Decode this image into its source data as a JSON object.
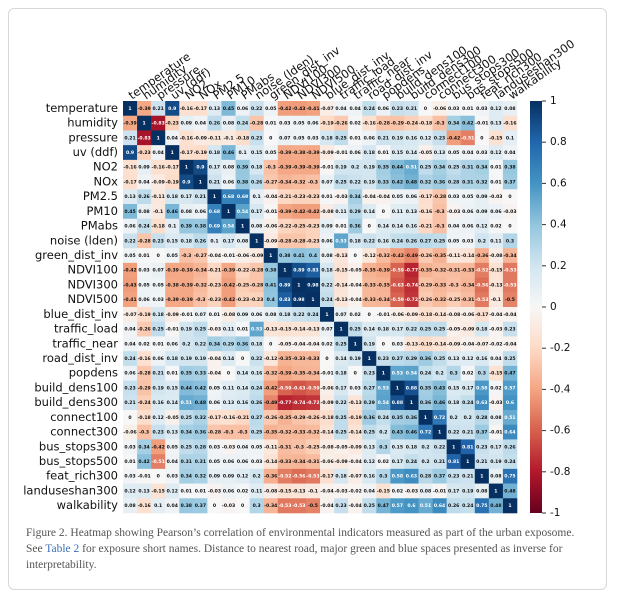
{
  "chart_data": {
    "type": "heatmap",
    "categories": [
      "temperature",
      "humidity",
      "pressure",
      "uv (ddf)",
      "NO2",
      "NOx",
      "PM2.5",
      "PM10",
      "PMabs",
      "noise (lden)",
      "green_dist_inv",
      "NDVI100",
      "NDVI300",
      "NDVI500",
      "blue_dist_inv",
      "traffic_load",
      "traffic_near",
      "road_dist_inv",
      "popdens",
      "build_dens100",
      "build_dens300",
      "connect100",
      "connect300",
      "bus_stops300",
      "bus_stops500",
      "feat_rich300",
      "landuseshan300",
      "walkability"
    ],
    "row_labels": [
      "temperature",
      "humidity",
      "pressure",
      "uv (ddf)",
      "NO2",
      "NOx",
      "PM2.5",
      "PM10",
      "PMabs",
      "noise (lden)",
      "green_dist_inv",
      "NDVI100",
      "NDVI300",
      "NDVI500",
      "blue_dist_inv",
      "traffic_load",
      "traffic_near",
      "road_dist_inv",
      "popdens",
      "build_dens100",
      "build_dens300",
      "connect100",
      "connect300",
      "bus_stops300",
      "bus_stops500",
      "feat_rich300",
      "landuseshan300",
      "walkability"
    ],
    "values": [
      [
        1,
        -0.39,
        0.21,
        0.9,
        -0.16,
        -0.17,
        0.13,
        0.45,
        0.06,
        0.22,
        0.05,
        -0.42,
        -0.43,
        -0.41,
        -0.07,
        0.04,
        0.04,
        0.24,
        0.06,
        0.23,
        0.21,
        0,
        -0.06,
        0.03,
        0.01,
        0.03,
        0.12,
        0.08
      ],
      [
        -0.39,
        1,
        -0.83,
        -0.23,
        0.09,
        0.04,
        0.26,
        0.08,
        0.24,
        -0.28,
        0.01,
        0.03,
        0.05,
        0.06,
        -0.19,
        -0.26,
        0.02,
        -0.16,
        -0.28,
        -0.29,
        -0.24,
        -0.18,
        -0.3,
        0.34,
        0.42,
        -0.01,
        0.13,
        -0.16
      ],
      [
        0.21,
        -0.83,
        1,
        0.04,
        -0.16,
        -0.09,
        -0.11,
        -0.1,
        -0.18,
        0.23,
        0,
        0.07,
        0.05,
        0.03,
        0.18,
        0.25,
        0.01,
        0.06,
        0.21,
        0.19,
        0.16,
        0.12,
        0.23,
        -0.42,
        -0.51,
        0,
        -0.15,
        0.1
      ],
      [
        0.9,
        -0.23,
        0.04,
        1,
        -0.17,
        -0.19,
        0.18,
        0.46,
        0.1,
        0.15,
        0.05,
        -0.39,
        -0.38,
        -0.39,
        -0.09,
        -0.01,
        0.06,
        0.18,
        0.01,
        0.15,
        0.14,
        -0.05,
        0.13,
        0.05,
        0.04,
        0.03,
        0.12,
        0.04
      ],
      [
        -0.16,
        0.09,
        -0.16,
        -0.17,
        1,
        0.9,
        0.17,
        0.08,
        0.39,
        0.18,
        -0.3,
        -0.39,
        -0.39,
        -0.39,
        -0.01,
        0.19,
        0.2,
        0.19,
        0.35,
        0.44,
        0.51,
        0.25,
        0.34,
        0.25,
        0.31,
        0.34,
        0.01,
        0.38
      ],
      [
        -0.17,
        0.04,
        -0.09,
        -0.19,
        0.9,
        1,
        0.21,
        0.06,
        0.38,
        0.26,
        -0.27,
        -0.34,
        -0.32,
        -0.3,
        0.07,
        0.25,
        0.22,
        0.19,
        0.33,
        0.42,
        0.48,
        0.32,
        0.36,
        0.28,
        0.31,
        0.32,
        0.01,
        0.37
      ],
      [
        0.13,
        0.26,
        -0.11,
        0.18,
        0.17,
        0.21,
        1,
        0.68,
        0.69,
        0.1,
        -0.04,
        -0.21,
        -0.23,
        -0.23,
        0.01,
        -0.03,
        0.34,
        -0.04,
        -0.04,
        0.05,
        0.06,
        -0.17,
        -0.28,
        0.03,
        0.05,
        0.09,
        -0.03,
        0
      ],
      [
        0.45,
        0.08,
        -0.1,
        0.46,
        0.08,
        0.06,
        0.68,
        1,
        0.54,
        0.17,
        -0.01,
        -0.39,
        -0.42,
        -0.42,
        -0.08,
        0.11,
        0.29,
        0.14,
        0,
        0.11,
        0.13,
        -0.16,
        -0.3,
        -0.03,
        0.06,
        0.09,
        0.06,
        -0.03
      ],
      [
        0.06,
        0.24,
        -0.18,
        0.1,
        0.39,
        0.38,
        0.69,
        0.54,
        1,
        0.08,
        -0.06,
        -0.22,
        -0.25,
        -0.23,
        0.09,
        0.01,
        0.36,
        0,
        0.14,
        0.14,
        0.16,
        -0.21,
        -0.3,
        0.04,
        0.06,
        0.12,
        0.02,
        0
      ],
      [
        0.22,
        -0.28,
        0.23,
        0.15,
        0.18,
        0.26,
        0.1,
        0.17,
        0.08,
        1,
        -0.09,
        -0.28,
        -0.28,
        -0.23,
        0.06,
        0.53,
        0.18,
        0.22,
        0.16,
        0.24,
        0.26,
        0.27,
        0.25,
        0.05,
        0.03,
        0.2,
        0.11,
        0.3
      ],
      [
        0.05,
        0.01,
        0,
        0.05,
        -0.3,
        -0.27,
        -0.04,
        -0.01,
        -0.06,
        -0.09,
        1,
        0.38,
        0.41,
        0.4,
        0.08,
        -0.13,
        0,
        -0.12,
        -0.32,
        -0.42,
        -0.49,
        -0.26,
        -0.35,
        -0.11,
        -0.14,
        -0.36,
        -0.08,
        -0.34
      ],
      [
        -0.42,
        0.03,
        0.07,
        -0.39,
        -0.39,
        -0.34,
        -0.21,
        -0.39,
        -0.22,
        -0.28,
        0.38,
        1,
        0.89,
        0.83,
        0.18,
        -0.15,
        -0.05,
        -0.35,
        -0.39,
        -0.59,
        -0.77,
        -0.35,
        -0.32,
        -0.31,
        -0.33,
        -0.52,
        -0.15,
        -0.53
      ],
      [
        -0.43,
        0.05,
        0.05,
        -0.38,
        -0.39,
        -0.32,
        -0.23,
        -0.42,
        -0.25,
        -0.28,
        0.41,
        0.89,
        1,
        0.98,
        0.22,
        -0.14,
        -0.04,
        -0.33,
        -0.35,
        -0.63,
        -0.74,
        -0.29,
        -0.33,
        -0.3,
        -0.34,
        -0.56,
        -0.13,
        -0.53
      ],
      [
        -0.41,
        0.06,
        0.03,
        -0.39,
        -0.39,
        -0.3,
        -0.23,
        -0.42,
        -0.23,
        -0.23,
        0.4,
        0.83,
        0.98,
        1,
        0.24,
        -0.13,
        -0.04,
        -0.33,
        -0.34,
        -0.59,
        -0.72,
        -0.26,
        -0.32,
        -0.25,
        -0.31,
        -0.53,
        -0.1,
        -0.5
      ],
      [
        -0.07,
        -0.19,
        0.18,
        -0.09,
        -0.01,
        0.07,
        0.01,
        -0.08,
        0.09,
        0.06,
        0.08,
        0.18,
        0.22,
        0.24,
        1,
        0.07,
        0.02,
        0,
        -0.01,
        -0.06,
        -0.09,
        -0.18,
        -0.14,
        -0.08,
        -0.06,
        -0.17,
        -0.04,
        -0.04
      ],
      [
        0.04,
        -0.26,
        0.25,
        -0.01,
        0.19,
        0.25,
        -0.03,
        0.11,
        0.01,
        0.53,
        -0.13,
        -0.15,
        -0.14,
        -0.13,
        0.07,
        1,
        0.25,
        0.14,
        0.18,
        0.17,
        0.22,
        0.25,
        0.25,
        -0.05,
        -0.09,
        0.18,
        -0.03,
        0.23
      ],
      [
        0.04,
        0.02,
        0.01,
        0.06,
        0.2,
        0.22,
        0.34,
        0.29,
        0.36,
        0.18,
        0,
        -0.05,
        -0.04,
        -0.04,
        0.02,
        0.25,
        1,
        0.19,
        0,
        0.03,
        -0.13,
        -0.19,
        -0.14,
        -0.09,
        -0.04,
        -0.07,
        -0.02,
        -0.04
      ],
      [
        0.24,
        -0.16,
        0.06,
        0.18,
        0.19,
        0.19,
        -0.04,
        0.14,
        0,
        0.22,
        -0.12,
        -0.35,
        -0.33,
        -0.33,
        0,
        0.14,
        0.19,
        1,
        0.23,
        0.27,
        0.29,
        0.36,
        0.25,
        0.13,
        0.12,
        0.16,
        0.04,
        0.25
      ],
      [
        0.06,
        -0.28,
        0.21,
        0.01,
        0.35,
        0.33,
        -0.04,
        0,
        0.14,
        0.16,
        -0.32,
        -0.39,
        -0.35,
        -0.34,
        -0.01,
        0.18,
        0,
        0.23,
        1,
        0.53,
        0.54,
        0.24,
        0.2,
        0.3,
        0.02,
        0.3,
        -0.15,
        0.47
      ],
      [
        0.23,
        -0.29,
        0.19,
        0.15,
        0.44,
        0.42,
        0.05,
        0.11,
        0.14,
        0.24,
        -0.42,
        -0.59,
        -0.63,
        -0.59,
        -0.06,
        0.17,
        0.03,
        0.27,
        0.53,
        1,
        0.88,
        0.35,
        0.43,
        0.15,
        0.17,
        0.58,
        0.02,
        0.57
      ],
      [
        0.21,
        -0.24,
        0.16,
        0.14,
        0.51,
        0.48,
        0.06,
        0.13,
        0.16,
        0.26,
        -0.49,
        -0.77,
        -0.74,
        -0.72,
        -0.09,
        0.22,
        -0.13,
        0.29,
        0.54,
        0.88,
        1,
        0.36,
        0.46,
        0.18,
        0.24,
        0.63,
        -0.03,
        0.6
      ],
      [
        0,
        -0.18,
        0.12,
        -0.05,
        0.25,
        0.32,
        -0.17,
        -0.16,
        -0.21,
        0.27,
        -0.26,
        -0.35,
        -0.29,
        -0.26,
        -0.18,
        0.25,
        -0.19,
        0.36,
        0.24,
        0.35,
        0.36,
        1,
        0.72,
        0.2,
        0.2,
        0.28,
        0.08,
        0.51
      ],
      [
        -0.06,
        -0.3,
        0.23,
        0.13,
        0.34,
        0.36,
        -0.28,
        -0.3,
        -0.3,
        0.25,
        -0.35,
        -0.32,
        -0.33,
        -0.32,
        -0.14,
        0.25,
        -0.14,
        0.25,
        0.2,
        0.43,
        0.46,
        0.72,
        1,
        0.22,
        0.21,
        0.37,
        -0.01,
        0.64
      ],
      [
        0.03,
        0.34,
        -0.42,
        0.05,
        0.25,
        0.28,
        0.03,
        -0.03,
        0.04,
        0.05,
        -0.11,
        -0.31,
        -0.3,
        -0.25,
        -0.08,
        -0.05,
        -0.09,
        0.13,
        0.3,
        0.15,
        0.18,
        0.2,
        0.22,
        1,
        0.81,
        0.23,
        0.17,
        0.26
      ],
      [
        0.01,
        0.42,
        -0.51,
        0.04,
        0.31,
        0.31,
        0.05,
        0.06,
        0.06,
        0.03,
        -0.14,
        -0.33,
        -0.34,
        -0.31,
        -0.06,
        -0.09,
        -0.04,
        0.12,
        0.02,
        0.17,
        0.24,
        0.2,
        0.21,
        0.81,
        1,
        0.21,
        0.19,
        0.24
      ],
      [
        0.03,
        -0.01,
        0,
        0.03,
        0.34,
        0.32,
        0.09,
        0.09,
        0.12,
        0.2,
        -0.36,
        -0.52,
        -0.56,
        -0.53,
        -0.17,
        0.18,
        -0.07,
        0.16,
        0.3,
        0.58,
        0.63,
        0.28,
        0.37,
        0.23,
        0.21,
        1,
        0.08,
        0.75
      ],
      [
        0.12,
        0.13,
        -0.15,
        0.12,
        0.01,
        0.01,
        -0.03,
        0.06,
        0.02,
        0.11,
        -0.08,
        -0.15,
        -0.13,
        -0.1,
        -0.04,
        -0.03,
        -0.02,
        0.04,
        -0.15,
        0.02,
        -0.03,
        0.08,
        -0.01,
        0.17,
        0.19,
        0.08,
        1,
        0.48
      ],
      [
        0.08,
        -0.16,
        0.1,
        0.04,
        0.38,
        0.37,
        0,
        -0.03,
        0,
        0.3,
        -0.34,
        -0.53,
        -0.53,
        -0.5,
        -0.04,
        0.23,
        -0.04,
        0.25,
        0.47,
        0.57,
        0.6,
        0.51,
        0.64,
        0.26,
        0.24,
        0.75,
        0.48,
        1
      ]
    ],
    "colormap": [
      "#67001f",
      "#b2182b",
      "#d6604d",
      "#f4a582",
      "#fddbc7",
      "#f7f7f7",
      "#d1e5f0",
      "#92c5de",
      "#4393c3",
      "#2166ac",
      "#053061"
    ],
    "zlim": [
      -1,
      1
    ],
    "zticks": [
      -1,
      -0.8,
      -0.6,
      -0.4,
      -0.2,
      0,
      0.2,
      0.4,
      0.6,
      0.8,
      1
    ]
  },
  "caption": {
    "label": "Figure 2.",
    "text_1": "Heatmap showing Pearson’s correlation of environmental indicators measured as part of the urban exposome. See",
    "link": "Table 2",
    "text_2": "for exposure short names. Distance to nearest road, major green and blue spaces presented as inverse for interpretability."
  }
}
